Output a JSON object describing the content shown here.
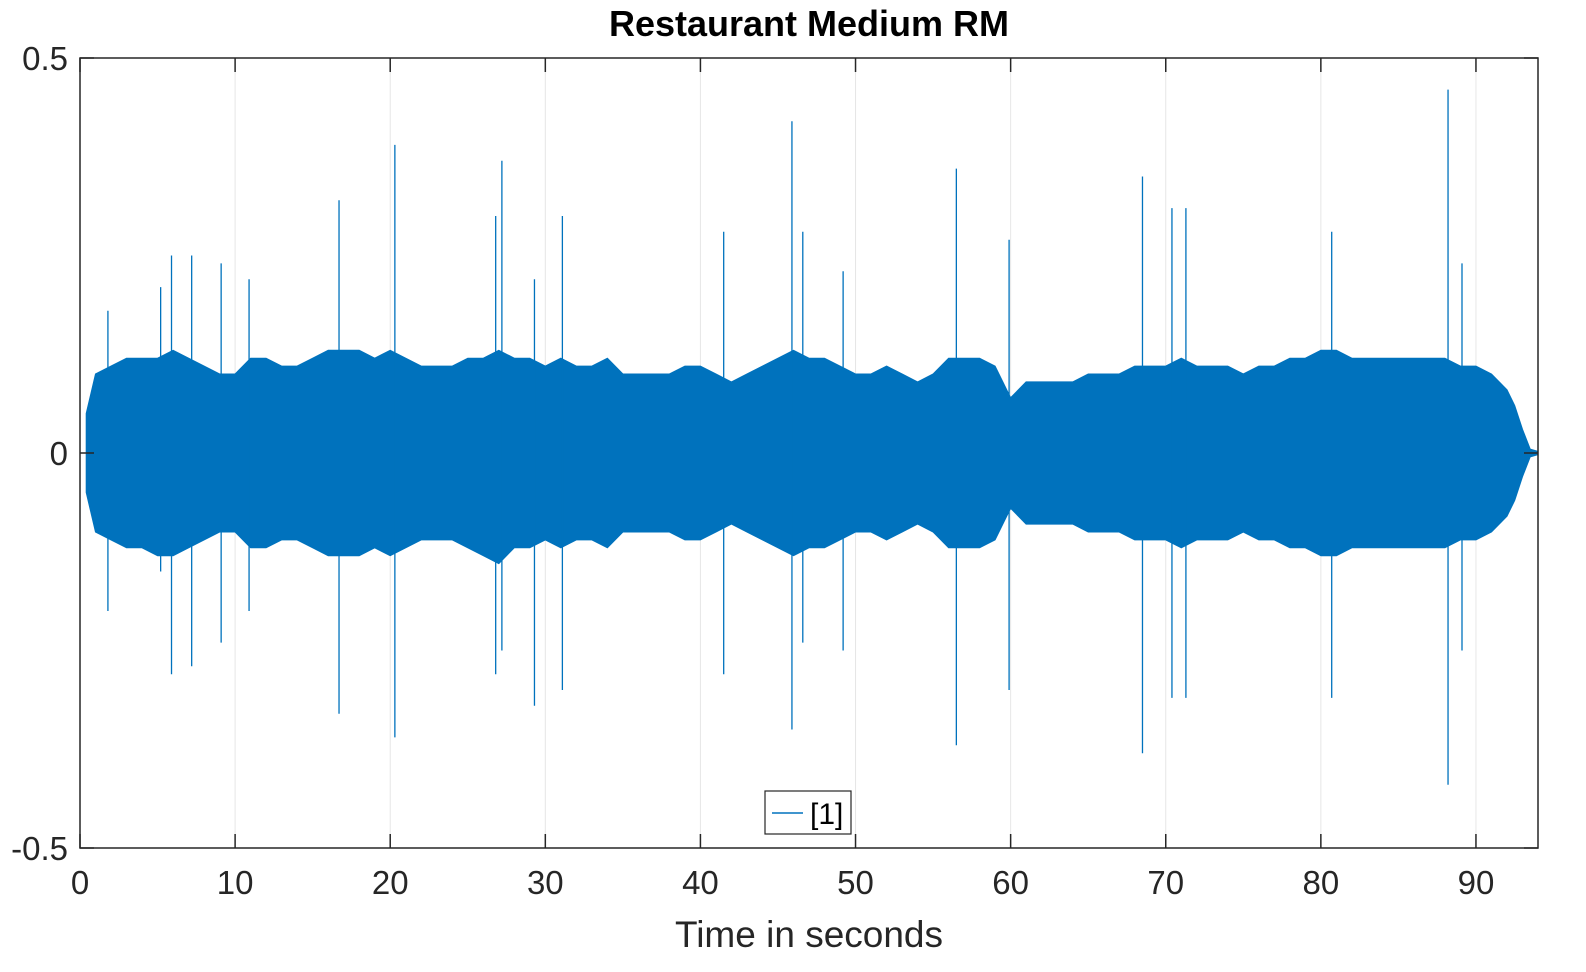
{
  "chart_data": {
    "type": "line",
    "title": "Restaurant Medium RM",
    "xlabel": "Time in seconds",
    "ylabel": "",
    "xlim": [
      0,
      94
    ],
    "ylim": [
      -0.5,
      0.5
    ],
    "xticks": [
      0,
      10,
      20,
      30,
      40,
      50,
      60,
      70,
      80,
      90
    ],
    "xtick_labels": [
      "0",
      "10",
      "20",
      "30",
      "40",
      "50",
      "60",
      "70",
      "80",
      "90"
    ],
    "yticks": [
      -0.5,
      0,
      0.5
    ],
    "ytick_labels": [
      "-0.5",
      "0",
      "0.5"
    ],
    "grid": "vertical",
    "legend": {
      "entries": [
        "[1]"
      ],
      "placement": "bottom-center"
    },
    "colors": {
      "series": "#0072BD",
      "axis": "#262626",
      "grid": "#e6e6e6"
    },
    "series": [
      {
        "name": "[1]",
        "envelope": {
          "t": [
            0.4,
            1,
            2,
            3,
            4,
            5,
            6,
            7,
            8,
            9,
            10,
            11,
            12,
            13,
            14,
            15,
            16,
            17,
            18,
            19,
            20,
            21,
            22,
            23,
            24,
            25,
            26,
            27,
            28,
            29,
            30,
            31,
            32,
            33,
            34,
            35,
            36,
            37,
            38,
            39,
            40,
            41,
            42,
            43,
            44,
            45,
            46,
            47,
            48,
            49,
            50,
            51,
            52,
            53,
            54,
            55,
            56,
            57,
            58,
            59,
            60,
            61,
            62,
            63,
            64,
            65,
            66,
            67,
            68,
            69,
            70,
            71,
            72,
            73,
            74,
            75,
            76,
            77,
            78,
            79,
            80,
            81,
            82,
            83,
            84,
            85,
            86,
            87,
            88,
            89,
            90,
            91,
            92,
            92.5,
            93,
            93.5,
            94
          ],
          "upper": [
            0.05,
            0.1,
            0.11,
            0.12,
            0.12,
            0.12,
            0.13,
            0.12,
            0.11,
            0.1,
            0.1,
            0.12,
            0.12,
            0.11,
            0.11,
            0.12,
            0.13,
            0.13,
            0.13,
            0.12,
            0.13,
            0.12,
            0.11,
            0.11,
            0.11,
            0.12,
            0.12,
            0.13,
            0.12,
            0.12,
            0.11,
            0.12,
            0.11,
            0.11,
            0.12,
            0.1,
            0.1,
            0.1,
            0.1,
            0.11,
            0.11,
            0.1,
            0.09,
            0.1,
            0.11,
            0.12,
            0.13,
            0.12,
            0.12,
            0.11,
            0.1,
            0.1,
            0.11,
            0.1,
            0.09,
            0.1,
            0.12,
            0.12,
            0.12,
            0.11,
            0.07,
            0.09,
            0.09,
            0.09,
            0.09,
            0.1,
            0.1,
            0.1,
            0.11,
            0.11,
            0.11,
            0.12,
            0.11,
            0.11,
            0.11,
            0.1,
            0.11,
            0.11,
            0.12,
            0.12,
            0.13,
            0.13,
            0.12,
            0.12,
            0.12,
            0.12,
            0.12,
            0.12,
            0.12,
            0.11,
            0.11,
            0.1,
            0.08,
            0.06,
            0.03,
            0.005,
            0.002
          ],
          "lower": [
            -0.05,
            -0.1,
            -0.11,
            -0.12,
            -0.12,
            -0.13,
            -0.13,
            -0.12,
            -0.11,
            -0.1,
            -0.1,
            -0.12,
            -0.12,
            -0.11,
            -0.11,
            -0.12,
            -0.13,
            -0.13,
            -0.13,
            -0.12,
            -0.13,
            -0.12,
            -0.11,
            -0.11,
            -0.11,
            -0.12,
            -0.13,
            -0.14,
            -0.12,
            -0.12,
            -0.11,
            -0.12,
            -0.11,
            -0.11,
            -0.12,
            -0.1,
            -0.1,
            -0.1,
            -0.1,
            -0.11,
            -0.11,
            -0.1,
            -0.09,
            -0.1,
            -0.11,
            -0.12,
            -0.13,
            -0.12,
            -0.12,
            -0.11,
            -0.1,
            -0.1,
            -0.11,
            -0.1,
            -0.09,
            -0.1,
            -0.12,
            -0.12,
            -0.12,
            -0.11,
            -0.07,
            -0.09,
            -0.09,
            -0.09,
            -0.09,
            -0.1,
            -0.1,
            -0.1,
            -0.11,
            -0.11,
            -0.11,
            -0.12,
            -0.11,
            -0.11,
            -0.11,
            -0.1,
            -0.11,
            -0.11,
            -0.12,
            -0.12,
            -0.13,
            -0.13,
            -0.12,
            -0.12,
            -0.12,
            -0.12,
            -0.12,
            -0.12,
            -0.12,
            -0.11,
            -0.11,
            -0.1,
            -0.08,
            -0.06,
            -0.03,
            -0.005,
            -0.002
          ]
        },
        "peaks": [
          {
            "t": 1.8,
            "min": -0.2,
            "max": 0.18
          },
          {
            "t": 5.2,
            "min": -0.15,
            "max": 0.21
          },
          {
            "t": 5.9,
            "min": -0.28,
            "max": 0.25
          },
          {
            "t": 7.2,
            "min": -0.27,
            "max": 0.25
          },
          {
            "t": 9.1,
            "min": -0.24,
            "max": 0.24
          },
          {
            "t": 10.9,
            "min": -0.2,
            "max": 0.22
          },
          {
            "t": 16.7,
            "min": -0.33,
            "max": 0.32
          },
          {
            "t": 20.3,
            "min": -0.36,
            "max": 0.39
          },
          {
            "t": 26.8,
            "min": -0.28,
            "max": 0.3
          },
          {
            "t": 27.2,
            "min": -0.25,
            "max": 0.37
          },
          {
            "t": 29.3,
            "min": -0.32,
            "max": 0.22
          },
          {
            "t": 31.1,
            "min": -0.3,
            "max": 0.3
          },
          {
            "t": 41.5,
            "min": -0.28,
            "max": 0.28
          },
          {
            "t": 45.9,
            "min": -0.35,
            "max": 0.42
          },
          {
            "t": 46.6,
            "min": -0.24,
            "max": 0.28
          },
          {
            "t": 49.2,
            "min": -0.25,
            "max": 0.23
          },
          {
            "t": 56.5,
            "min": -0.37,
            "max": 0.36
          },
          {
            "t": 59.9,
            "min": -0.3,
            "max": 0.27
          },
          {
            "t": 68.5,
            "min": -0.38,
            "max": 0.35
          },
          {
            "t": 70.4,
            "min": -0.31,
            "max": 0.31
          },
          {
            "t": 71.3,
            "min": -0.31,
            "max": 0.31
          },
          {
            "t": 80.7,
            "min": -0.31,
            "max": 0.28
          },
          {
            "t": 88.2,
            "min": -0.42,
            "max": 0.46
          },
          {
            "t": 89.1,
            "min": -0.25,
            "max": 0.24
          }
        ]
      }
    ]
  }
}
